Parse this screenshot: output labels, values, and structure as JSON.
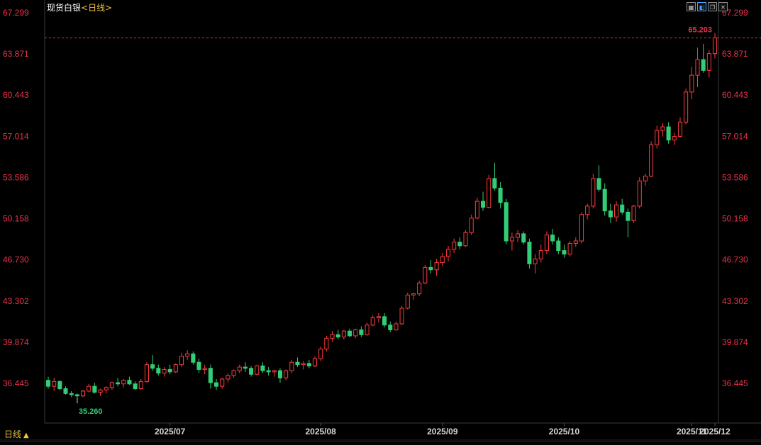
{
  "header": {
    "instrument": "现货白银",
    "period": "<日线>"
  },
  "toolbar": {
    "icons": [
      "panel-toggle-icon",
      "draw-line-icon",
      "window-restore-icon",
      "close-icon"
    ]
  },
  "period_switch": {
    "label": "日线",
    "arrow": "▲"
  },
  "colors": {
    "up": "#ff3b3b",
    "down": "#33cc77",
    "axis_text": "#e8334a",
    "date_text": "#d8d8d8",
    "grid": "#111"
  },
  "chart_data": {
    "type": "candlestick",
    "y_ticks": [
      "67.299",
      "63.871",
      "60.443",
      "57.014",
      "53.586",
      "50.158",
      "46.730",
      "43.302",
      "39.874",
      "36.445"
    ],
    "x_labels": [
      "2025/07",
      "2025/08",
      "2025/09",
      "2025/10",
      "2025/11",
      "2025/12"
    ],
    "last_price": "65.203",
    "low_marker": "35.260",
    "ylim": [
      34.8,
      67.8
    ],
    "candles": [
      [
        36.7,
        37.0,
        36.0,
        36.2
      ],
      [
        36.2,
        36.9,
        35.8,
        36.6
      ],
      [
        36.6,
        36.7,
        35.9,
        36.0
      ],
      [
        36.0,
        36.2,
        35.5,
        35.6
      ],
      [
        35.6,
        35.8,
        35.3,
        35.5
      ],
      [
        35.5,
        35.6,
        35.26,
        35.4
      ],
      [
        35.4,
        35.9,
        35.3,
        35.8
      ],
      [
        35.8,
        36.4,
        35.7,
        36.2
      ],
      [
        36.2,
        36.5,
        35.6,
        35.7
      ],
      [
        35.7,
        36.0,
        35.4,
        35.9
      ],
      [
        35.9,
        36.2,
        35.6,
        36.1
      ],
      [
        36.1,
        36.6,
        35.9,
        36.5
      ],
      [
        36.5,
        36.9,
        36.2,
        36.4
      ],
      [
        36.4,
        36.8,
        36.1,
        36.7
      ],
      [
        36.7,
        37.0,
        36.3,
        36.4
      ],
      [
        36.4,
        36.6,
        35.9,
        36.0
      ],
      [
        36.0,
        36.8,
        35.9,
        36.6
      ],
      [
        36.6,
        38.2,
        36.5,
        38.0
      ],
      [
        38.0,
        38.8,
        37.5,
        37.7
      ],
      [
        37.7,
        38.0,
        37.1,
        37.3
      ],
      [
        37.3,
        37.8,
        37.0,
        37.6
      ],
      [
        37.6,
        38.0,
        37.2,
        37.4
      ],
      [
        37.4,
        38.1,
        37.3,
        38.0
      ],
      [
        38.0,
        39.0,
        37.8,
        38.7
      ],
      [
        38.7,
        39.2,
        38.4,
        38.9
      ],
      [
        38.9,
        39.1,
        38.0,
        38.2
      ],
      [
        38.2,
        38.5,
        37.3,
        37.6
      ],
      [
        37.6,
        38.0,
        37.2,
        37.7
      ],
      [
        37.7,
        38.0,
        36.0,
        36.5
      ],
      [
        36.5,
        36.8,
        35.9,
        36.2
      ],
      [
        36.2,
        36.9,
        36.0,
        36.8
      ],
      [
        36.8,
        37.3,
        36.5,
        37.1
      ],
      [
        37.1,
        37.6,
        36.9,
        37.5
      ],
      [
        37.5,
        38.0,
        37.3,
        37.8
      ],
      [
        37.8,
        38.2,
        37.4,
        37.7
      ],
      [
        37.7,
        37.9,
        37.0,
        37.2
      ],
      [
        37.2,
        38.0,
        37.1,
        37.9
      ],
      [
        37.9,
        38.2,
        37.3,
        37.5
      ],
      [
        37.5,
        37.8,
        37.1,
        37.4
      ],
      [
        37.4,
        37.6,
        37.0,
        37.5
      ],
      [
        37.5,
        37.7,
        36.5,
        36.9
      ],
      [
        36.9,
        37.6,
        36.7,
        37.5
      ],
      [
        37.5,
        38.4,
        37.3,
        38.2
      ],
      [
        38.2,
        38.6,
        37.8,
        38.0
      ],
      [
        38.0,
        38.3,
        37.6,
        38.1
      ],
      [
        38.1,
        38.4,
        37.7,
        37.9
      ],
      [
        37.9,
        38.7,
        37.8,
        38.5
      ],
      [
        38.5,
        39.5,
        38.3,
        39.3
      ],
      [
        39.3,
        40.4,
        39.1,
        40.2
      ],
      [
        40.2,
        40.8,
        39.9,
        40.5
      ],
      [
        40.5,
        40.9,
        40.1,
        40.3
      ],
      [
        40.3,
        40.9,
        40.1,
        40.8
      ],
      [
        40.8,
        41.0,
        40.3,
        40.4
      ],
      [
        40.4,
        41.0,
        40.2,
        40.9
      ],
      [
        40.9,
        41.2,
        40.3,
        40.5
      ],
      [
        40.5,
        41.5,
        40.4,
        41.3
      ],
      [
        41.3,
        42.1,
        41.2,
        41.9
      ],
      [
        41.9,
        42.3,
        41.5,
        42.0
      ],
      [
        42.0,
        42.3,
        41.1,
        41.3
      ],
      [
        41.3,
        41.6,
        40.7,
        40.9
      ],
      [
        40.9,
        41.6,
        40.8,
        41.4
      ],
      [
        41.4,
        42.9,
        41.3,
        42.7
      ],
      [
        42.7,
        44.0,
        42.6,
        43.8
      ],
      [
        43.8,
        44.0,
        43.4,
        43.9
      ],
      [
        43.9,
        45.0,
        43.7,
        44.8
      ],
      [
        44.8,
        46.3,
        44.7,
        46.1
      ],
      [
        46.1,
        46.7,
        45.6,
        45.9
      ],
      [
        45.9,
        46.8,
        45.4,
        46.5
      ],
      [
        46.5,
        47.3,
        46.2,
        47.0
      ],
      [
        47.0,
        47.9,
        46.6,
        47.6
      ],
      [
        47.6,
        48.5,
        47.3,
        48.2
      ],
      [
        48.2,
        48.6,
        47.6,
        47.9
      ],
      [
        47.9,
        49.2,
        47.8,
        49.0
      ],
      [
        49.0,
        50.5,
        48.8,
        50.2
      ],
      [
        50.2,
        51.9,
        50.1,
        51.6
      ],
      [
        51.6,
        52.4,
        50.8,
        51.1
      ],
      [
        51.1,
        53.8,
        51.0,
        53.5
      ],
      [
        53.5,
        54.8,
        52.5,
        52.7
      ],
      [
        52.7,
        53.2,
        51.0,
        51.5
      ],
      [
        51.5,
        51.8,
        48.0,
        48.3
      ],
      [
        48.3,
        49.0,
        47.5,
        48.6
      ],
      [
        48.6,
        49.2,
        48.2,
        48.9
      ],
      [
        48.9,
        49.1,
        48.0,
        48.2
      ],
      [
        48.2,
        48.5,
        46.0,
        46.4
      ],
      [
        46.4,
        47.2,
        45.6,
        46.8
      ],
      [
        46.8,
        48.0,
        46.5,
        47.5
      ],
      [
        47.5,
        49.1,
        47.2,
        48.8
      ],
      [
        48.8,
        49.3,
        48.0,
        48.3
      ],
      [
        48.3,
        48.6,
        47.2,
        47.5
      ],
      [
        47.5,
        48.0,
        46.9,
        47.2
      ],
      [
        47.2,
        48.3,
        47.0,
        48.1
      ],
      [
        48.1,
        48.6,
        47.8,
        48.3
      ],
      [
        48.3,
        50.7,
        48.1,
        50.5
      ],
      [
        50.5,
        51.4,
        50.1,
        51.2
      ],
      [
        51.2,
        53.9,
        51.0,
        53.5
      ],
      [
        53.5,
        54.6,
        52.4,
        52.6
      ],
      [
        52.6,
        53.1,
        50.4,
        50.8
      ],
      [
        50.8,
        51.4,
        49.8,
        50.3
      ],
      [
        50.3,
        51.6,
        49.9,
        51.3
      ],
      [
        51.3,
        51.8,
        50.5,
        50.7
      ],
      [
        50.7,
        51.0,
        48.6,
        50.0
      ],
      [
        50.0,
        51.3,
        49.8,
        51.2
      ],
      [
        51.2,
        53.6,
        51.0,
        53.3
      ],
      [
        53.3,
        53.9,
        52.9,
        53.7
      ],
      [
        53.7,
        56.6,
        53.6,
        56.3
      ],
      [
        56.3,
        57.9,
        56.0,
        57.5
      ],
      [
        57.5,
        58.1,
        57.0,
        57.8
      ],
      [
        57.8,
        58.2,
        56.4,
        56.7
      ],
      [
        56.7,
        57.3,
        56.3,
        57.0
      ],
      [
        57.0,
        58.6,
        56.9,
        58.2
      ],
      [
        58.2,
        61.0,
        58.0,
        60.7
      ],
      [
        60.7,
        62.8,
        60.1,
        62.1
      ],
      [
        62.1,
        64.4,
        61.1,
        63.4
      ],
      [
        63.4,
        64.7,
        62.3,
        62.5
      ],
      [
        62.5,
        64.2,
        61.9,
        63.9
      ],
      [
        63.9,
        65.6,
        63.5,
        65.203
      ]
    ]
  }
}
